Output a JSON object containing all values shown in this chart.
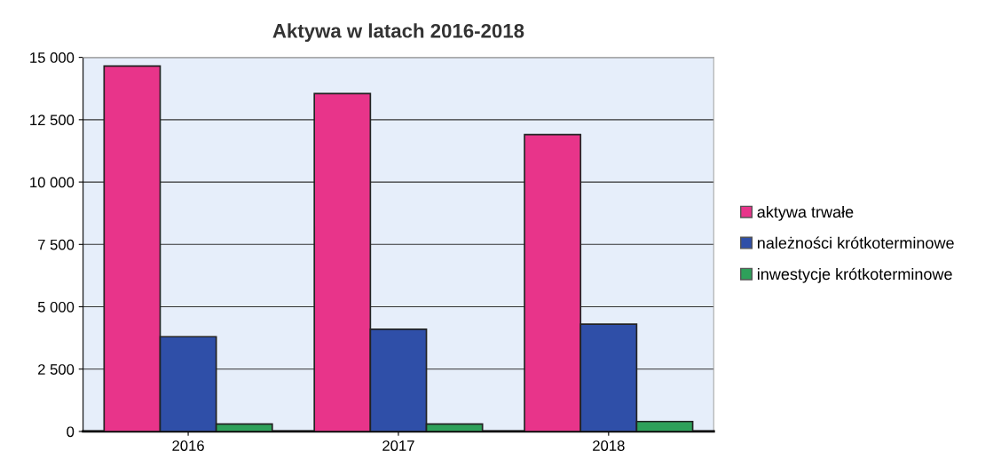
{
  "chart_data": {
    "type": "bar",
    "title": "Aktywa w latach 2016-2018",
    "categories": [
      "2016",
      "2017",
      "2018"
    ],
    "series": [
      {
        "name": "aktywa trwałe",
        "color": "#e8348a",
        "values": [
          14650,
          13550,
          11900
        ]
      },
      {
        "name": "należności krótkoterminowe",
        "color": "#2f4fa8",
        "values": [
          3800,
          4100,
          4300
        ]
      },
      {
        "name": "inwestycje krótkoterminowe",
        "color": "#2ea05a",
        "values": [
          300,
          300,
          400
        ]
      }
    ],
    "ylim": [
      0,
      15000
    ],
    "yticks": [
      {
        "value": 0,
        "label": "0"
      },
      {
        "value": 2500,
        "label": "2 500"
      },
      {
        "value": 5000,
        "label": "5 000"
      },
      {
        "value": 7500,
        "label": "7 500"
      },
      {
        "value": 10000,
        "label": "10 000"
      },
      {
        "value": 12500,
        "label": "12 500"
      },
      {
        "value": 15000,
        "label": "15 000"
      }
    ],
    "grid": "y",
    "legend": "right"
  }
}
